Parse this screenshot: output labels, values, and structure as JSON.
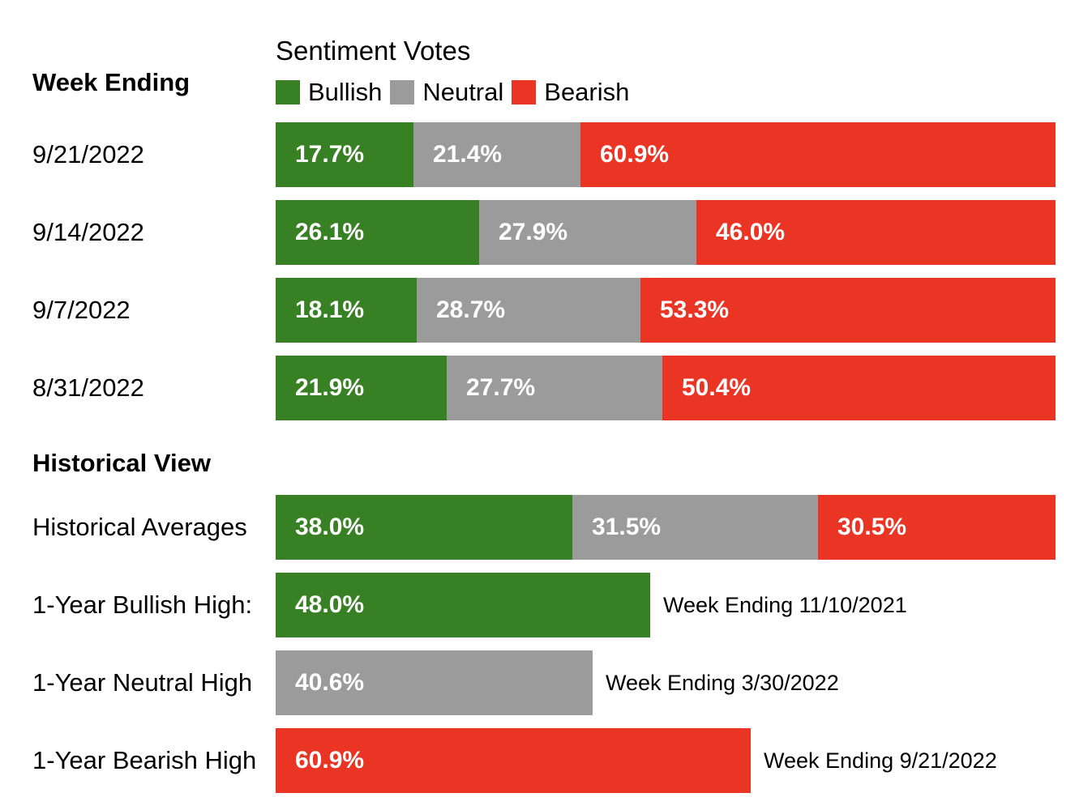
{
  "chart_data": {
    "type": "bar",
    "orientation": "horizontal",
    "stacked": true,
    "title": "Sentiment Votes",
    "legend": [
      {
        "name": "Bullish",
        "color": "#388024"
      },
      {
        "name": "Neutral",
        "color": "#9b9b9b"
      },
      {
        "name": "Bearish",
        "color": "#ea3424"
      }
    ],
    "weekly_header": "Week Ending",
    "weekly": [
      {
        "label": "9/21/2022",
        "values": [
          17.7,
          21.4,
          60.9
        ],
        "texts": [
          "17.7%",
          "21.4%",
          "60.9%"
        ]
      },
      {
        "label": "9/14/2022",
        "values": [
          26.1,
          27.9,
          46.0
        ],
        "texts": [
          "26.1%",
          "27.9%",
          "46.0%"
        ]
      },
      {
        "label": "9/7/2022",
        "values": [
          18.1,
          28.7,
          53.3
        ],
        "texts": [
          "18.1%",
          "28.7%",
          "53.3%"
        ]
      },
      {
        "label": "8/31/2022",
        "values": [
          21.9,
          27.7,
          50.4
        ],
        "texts": [
          "21.9%",
          "27.7%",
          "50.4%"
        ]
      }
    ],
    "historical_header": "Historical View",
    "historical_averages": {
      "label": "Historical Averages",
      "values": [
        38.0,
        31.5,
        30.5
      ],
      "texts": [
        "38.0%",
        "31.5%",
        "30.5%"
      ]
    },
    "highs": [
      {
        "label": "1-Year Bullish High:",
        "series": 0,
        "value": 48.0,
        "text": "48.0%",
        "note": "Week Ending 11/10/2021"
      },
      {
        "label": "1-Year Neutral High",
        "series": 1,
        "value": 40.6,
        "text": "40.6%",
        "note": "Week Ending 3/30/2022"
      },
      {
        "label": "1-Year Bearish High",
        "series": 2,
        "value": 60.9,
        "text": "60.9%",
        "note": "Week Ending 9/21/2022"
      }
    ],
    "xlim": [
      0,
      100
    ]
  }
}
